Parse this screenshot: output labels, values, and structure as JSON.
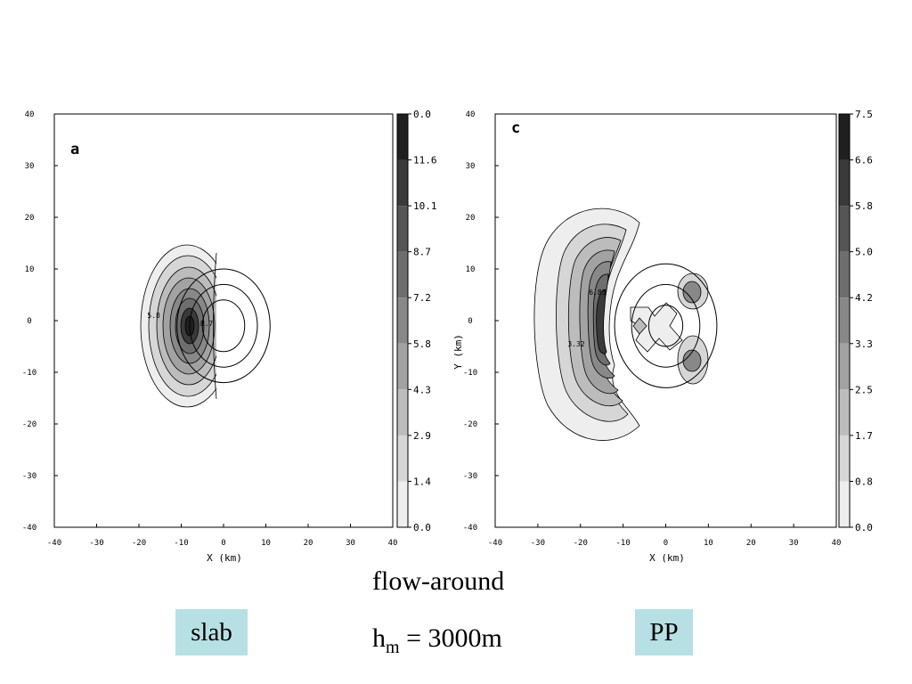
{
  "chart_data": [
    {
      "type": "heatmap",
      "panel_letter": "a",
      "xlabel": "X (km)",
      "ylabel": "",
      "xlim": [
        -40,
        40
      ],
      "ylim": [
        -40,
        40
      ],
      "xticks": [
        "-40",
        "-30",
        "-20",
        "-10",
        "0",
        "10",
        "20",
        "30",
        "40"
      ],
      "yticks": [
        "40",
        "30",
        "20",
        "10",
        "0",
        "-10",
        "-20",
        "-30",
        "-40"
      ],
      "colorbar_labels": [
        "0.0",
        "11.6",
        "10.1",
        "8.7",
        "7.2",
        "5.8",
        "4.3",
        "2.9",
        "1.4",
        "0.0"
      ],
      "colorbar_shades": [
        "#1f1f1f",
        "#3a3a3a",
        "#555555",
        "#6e6e6e",
        "#888888",
        "#a2a2a2",
        "#bcbcbc",
        "#d6d6d6",
        "#eeeeee"
      ],
      "contour_labels": [
        {
          "text": "5.8",
          "x": -16.5,
          "y": 0.5
        },
        {
          "text": "8.7",
          "x": -4,
          "y": -1
        }
      ],
      "mountain_circles_radius_km": [
        5,
        8,
        11
      ],
      "mountain_center": [
        0,
        -1
      ]
    },
    {
      "type": "heatmap",
      "panel_letter": "c",
      "xlabel": "X (km)",
      "ylabel": "Y (km)",
      "xlim": [
        -40,
        40
      ],
      "ylim": [
        -40,
        40
      ],
      "xticks": [
        "-40",
        "-30",
        "-20",
        "-10",
        "0",
        "10",
        "20",
        "30",
        "40"
      ],
      "yticks": [
        "40",
        "30",
        "20",
        "10",
        "0",
        "-10",
        "-20",
        "-30",
        "-40"
      ],
      "colorbar_labels": [
        "7.5",
        "6.6",
        "5.8",
        "5.0",
        "4.2",
        "3.3",
        "2.5",
        "1.7",
        "0.8",
        "0.0"
      ],
      "colorbar_shades": [
        "#1f1f1f",
        "#3a3a3a",
        "#555555",
        "#6e6e6e",
        "#888888",
        "#a2a2a2",
        "#bcbcbc",
        "#d6d6d6",
        "#eeeeee"
      ],
      "contour_labels": [
        {
          "text": "6.85",
          "x": -16,
          "y": 5
        },
        {
          "text": "3.32",
          "x": -21,
          "y": -5
        }
      ],
      "mountain_circles_radius_km": [
        4,
        8,
        12
      ],
      "mountain_center": [
        0,
        -1
      ]
    }
  ],
  "captions": {
    "flow": "flow-around",
    "hm_base": "h",
    "hm_sub": "m",
    "hm_rest": " = 3000m"
  },
  "tags": {
    "left": "slab",
    "right": "PP"
  }
}
